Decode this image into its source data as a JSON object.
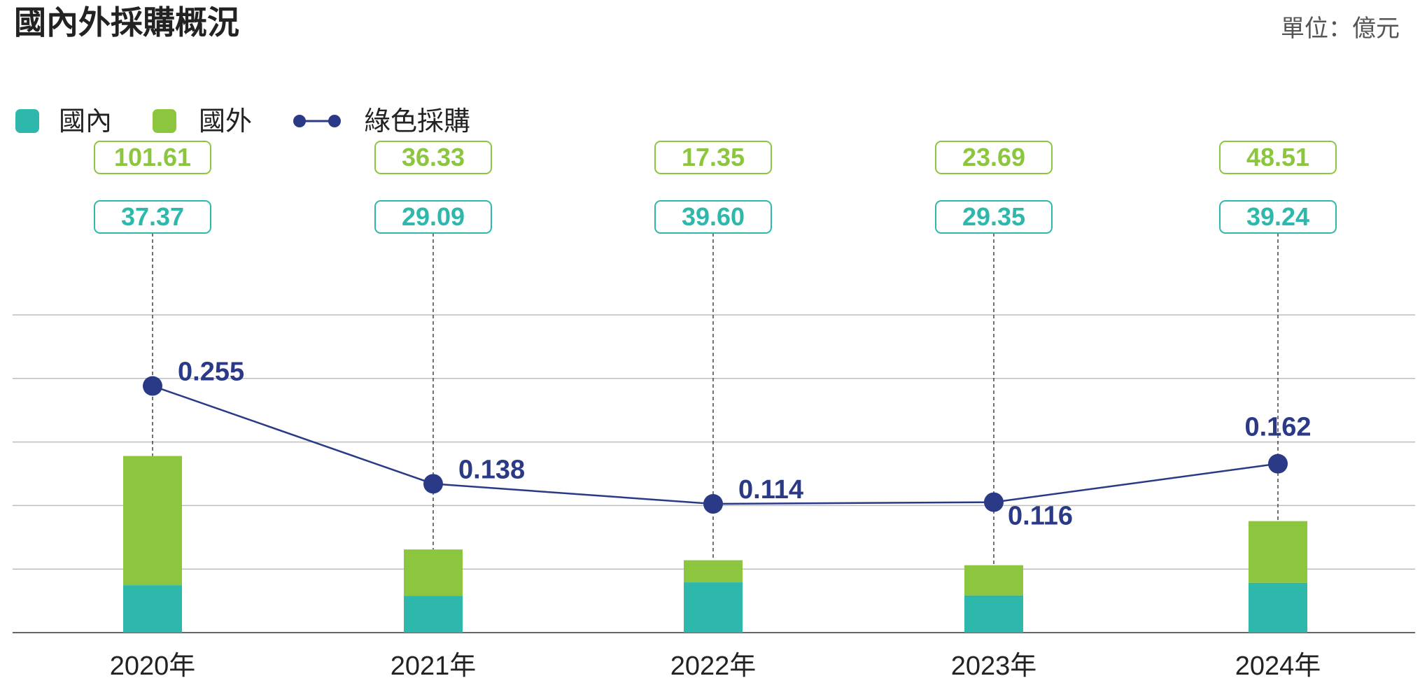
{
  "title": "國內外採購概況",
  "unit_label": "單位：億元",
  "legend": {
    "domestic": "國內",
    "foreign": "國外",
    "green": "綠色採購"
  },
  "colors": {
    "domestic": "#2eb8ac",
    "foreign": "#8cc63f",
    "green": "#2b3a87",
    "grid": "#bdbdbd",
    "axis": "#666666"
  },
  "chart_data": {
    "type": "bar",
    "stacked": true,
    "categories": [
      "2020年",
      "2021年",
      "2022年",
      "2023年",
      "2024年"
    ],
    "series": [
      {
        "name": "國內",
        "values": [
          37.37,
          29.09,
          39.6,
          29.35,
          39.24
        ],
        "labels": [
          "37.37",
          "29.09",
          "39.60",
          "29.35",
          "39.24"
        ]
      },
      {
        "name": "國外",
        "values": [
          101.61,
          36.33,
          17.35,
          23.69,
          48.51
        ],
        "labels": [
          "101.61",
          "36.33",
          "17.35",
          "23.69",
          "48.51"
        ]
      }
    ],
    "line_series": {
      "name": "綠色採購",
      "values": [
        0.255,
        0.138,
        0.114,
        0.116,
        0.162
      ],
      "labels": [
        "0.255",
        "0.138",
        "0.114",
        "0.116",
        "0.162"
      ],
      "label_positions": [
        "right",
        "right",
        "right",
        "below-right",
        "above"
      ]
    },
    "ylim_bars": [
      0,
      250
    ],
    "ylim_line": [
      -0.04,
      0.34
    ],
    "grid": true,
    "legend_position": "top-left"
  }
}
